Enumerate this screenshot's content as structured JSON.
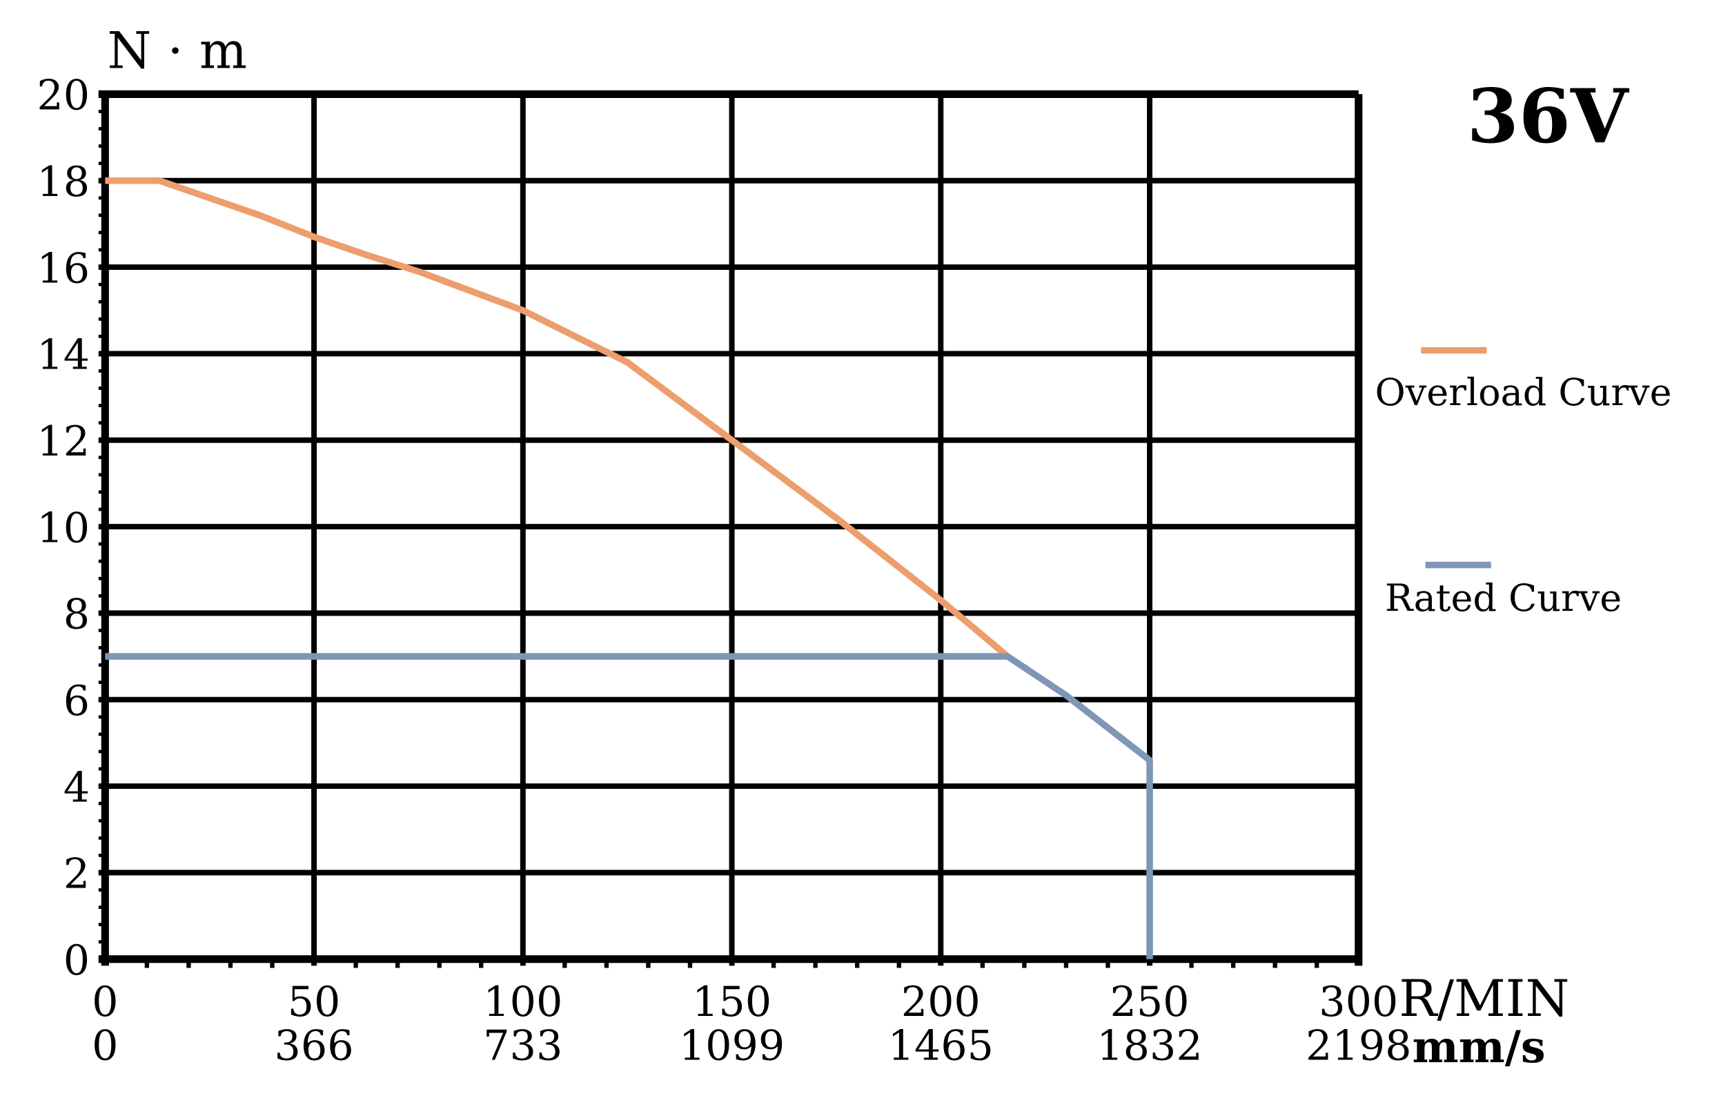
{
  "chart_data": {
    "type": "line",
    "title": "36V",
    "ylabel": "N · m",
    "xlabel": "R/MIN",
    "xlabel2": "mm/s",
    "xlim": [
      0,
      300
    ],
    "ylim": [
      0,
      20
    ],
    "grid": true,
    "x_ticks": [
      0,
      50,
      100,
      150,
      200,
      250,
      300
    ],
    "x_tick_labels": [
      "0",
      "50",
      "100",
      "150",
      "200",
      "250",
      "300"
    ],
    "x2_tick_labels": [
      "0",
      "366",
      "733",
      "1099",
      "1465",
      "1832",
      "2198"
    ],
    "y_ticks": [
      0,
      2,
      4,
      6,
      8,
      10,
      12,
      14,
      16,
      18,
      20
    ],
    "y_tick_labels": [
      "0",
      "2",
      "4",
      "6",
      "8",
      "10",
      "12",
      "14",
      "16",
      "18",
      "20"
    ],
    "legend_placement": "right",
    "series": [
      {
        "name": "Overload Curve",
        "color": "#ED9E6D",
        "x": [
          0,
          13,
          25,
          37,
          50,
          62,
          75,
          100,
          125,
          150,
          175,
          200,
          216
        ],
        "y": [
          18,
          18,
          17.6,
          17.2,
          16.7,
          16.3,
          15.9,
          15.0,
          13.8,
          12.0,
          10.2,
          8.3,
          7.0
        ]
      },
      {
        "name": "Rated Curve",
        "color": "#7F96B6",
        "x": [
          0,
          216,
          230,
          250,
          250
        ],
        "y": [
          7,
          7,
          6.1,
          4.6,
          0
        ]
      }
    ]
  }
}
